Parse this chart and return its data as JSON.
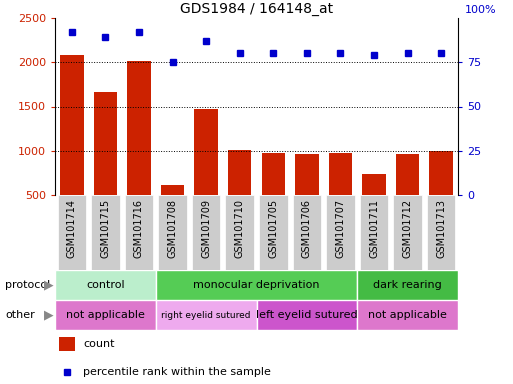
{
  "title": "GDS1984 / 164148_at",
  "samples": [
    "GSM101714",
    "GSM101715",
    "GSM101716",
    "GSM101708",
    "GSM101709",
    "GSM101710",
    "GSM101705",
    "GSM101706",
    "GSM101707",
    "GSM101711",
    "GSM101712",
    "GSM101713"
  ],
  "counts": [
    2080,
    1660,
    2010,
    610,
    1470,
    1010,
    970,
    960,
    970,
    740,
    960,
    1000
  ],
  "percentiles": [
    92,
    89,
    92,
    75,
    87,
    80,
    80,
    80,
    80,
    79,
    80,
    80
  ],
  "ylim_left": [
    500,
    2500
  ],
  "ylim_right": [
    0,
    100
  ],
  "yticks_left": [
    500,
    1000,
    1500,
    2000,
    2500
  ],
  "yticks_right": [
    0,
    25,
    50,
    75
  ],
  "yticks_right_top_label": "100%",
  "bar_color": "#cc2200",
  "dot_color": "#0000cc",
  "protocol_groups": [
    {
      "label": "control",
      "start": 0,
      "end": 3,
      "color": "#bbeecc"
    },
    {
      "label": "monocular deprivation",
      "start": 3,
      "end": 9,
      "color": "#55cc55"
    },
    {
      "label": "dark rearing",
      "start": 9,
      "end": 12,
      "color": "#44bb44"
    }
  ],
  "other_groups": [
    {
      "label": "not applicable",
      "start": 0,
      "end": 3,
      "color": "#dd77cc"
    },
    {
      "label": "right eyelid sutured",
      "start": 3,
      "end": 6,
      "color": "#eeaaee"
    },
    {
      "label": "left eyelid sutured",
      "start": 6,
      "end": 9,
      "color": "#cc55cc"
    },
    {
      "label": "not applicable",
      "start": 9,
      "end": 12,
      "color": "#dd77cc"
    }
  ],
  "protocol_label": "protocol",
  "other_label": "other",
  "legend_count_label": "count",
  "legend_pct_label": "percentile rank within the sample",
  "background_color": "#ffffff",
  "tick_label_color_left": "#cc2200",
  "tick_label_color_right": "#0000cc",
  "xtick_bg_color": "#cccccc",
  "fig_width": 5.13,
  "fig_height": 3.84,
  "dpi": 100
}
